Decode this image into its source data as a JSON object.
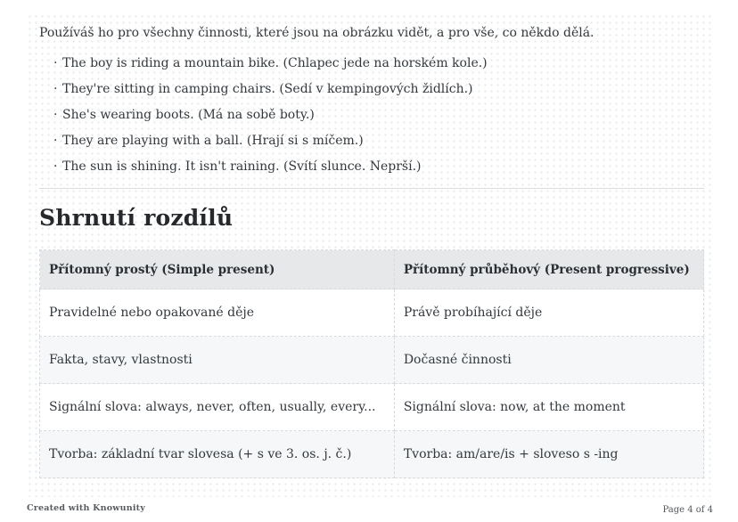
{
  "page": {
    "intro": "Používáš ho pro všechny činnosti, které jsou na obrázku vidět, a pro vše, co někdo dělá.",
    "bullet_char": "·",
    "bullets": [
      "The boy is riding a mountain bike. (Chlapec jede na horském kole.)",
      "They're sitting in camping chairs. (Sedí v kempingových židlích.)",
      "She's wearing boots. (Má na sobě boty.)",
      "They are playing with a ball. (Hrají si s míčem.)",
      "The sun is shining. It isn't raining. (Svítí slunce. Neprší.)"
    ],
    "heading": "Shrnutí rozdílů",
    "table": {
      "headers": [
        "Přítomný prostý (Simple present)",
        "Přítomný průběhový (Present progressive)"
      ],
      "rows": [
        [
          "Pravidelné nebo opakované děje",
          "Právě probíhající děje"
        ],
        [
          "Fakta, stavy, vlastnosti",
          "Dočasné činnosti"
        ],
        [
          "Signální slova: always, never, often, usually, every...",
          "Signální slova: now, at the moment"
        ],
        [
          "Tvorba: základní tvar slovesa (+ s ve 3. os. j. č.)",
          "Tvorba: am/are/is + sloveso s -ing"
        ]
      ]
    }
  },
  "footer": {
    "left": "Created with Knowunity",
    "right": "Page 4 of 4"
  },
  "colors": {
    "table_header_bg": "#e6e8ea",
    "table_stripe_bg": "#f5f7f8",
    "body_text": "#33383d"
  }
}
